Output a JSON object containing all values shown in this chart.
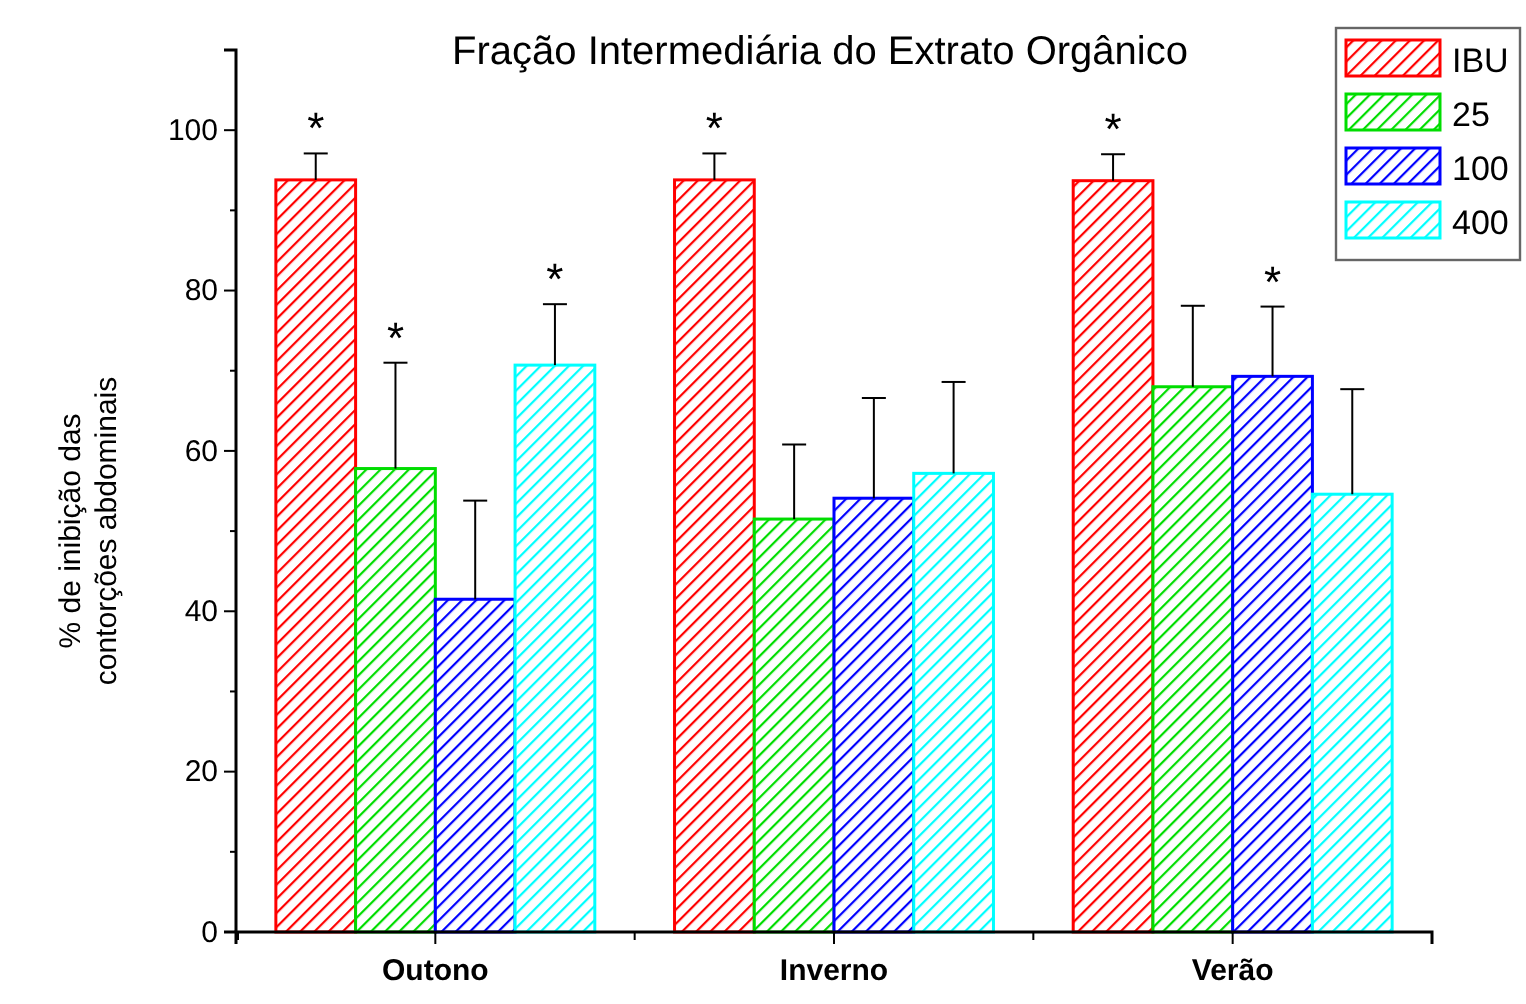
{
  "chart_data": {
    "type": "bar",
    "title": "Fração Intermediária do Extrato Orgânico",
    "ylabel": "% de inibição das\ncontorções abdominais",
    "categories": [
      "Outono",
      "Inverno",
      "Verão"
    ],
    "series": [
      {
        "name": "IBU",
        "color": "#ff0000",
        "values": [
          93.8,
          93.8,
          93.7
        ],
        "errors": [
          [
            93.8,
            97.1
          ],
          [
            93.8,
            97.1
          ],
          [
            93.7,
            97.0
          ]
        ],
        "value_labels": [
          "*",
          "*",
          "*"
        ]
      },
      {
        "name": "25",
        "color": "#00dd00",
        "values": [
          57.8,
          51.5,
          68.0
        ],
        "errors": [
          [
            57.8,
            71.0
          ],
          [
            51.5,
            60.8
          ],
          [
            68.0,
            78.1
          ]
        ],
        "value_labels": [
          "*",
          null,
          null
        ]
      },
      {
        "name": "100",
        "color": "#0000ff",
        "values": [
          41.5,
          54.1,
          69.3
        ],
        "errors": [
          [
            41.5,
            53.8
          ],
          [
            54.1,
            66.6
          ],
          [
            69.3,
            78.0
          ]
        ],
        "value_labels": [
          null,
          null,
          "*"
        ]
      },
      {
        "name": "400",
        "color": "#00ffff",
        "values": [
          70.7,
          57.2,
          54.6
        ],
        "errors": [
          [
            70.7,
            78.3
          ],
          [
            57.2,
            68.6
          ],
          [
            54.6,
            67.7
          ]
        ],
        "value_labels": [
          "*",
          null,
          null
        ]
      }
    ],
    "ylim": [
      0,
      110
    ],
    "yticks": [
      0,
      20,
      40,
      60,
      80,
      100
    ],
    "grid": false,
    "legend": "top right"
  }
}
